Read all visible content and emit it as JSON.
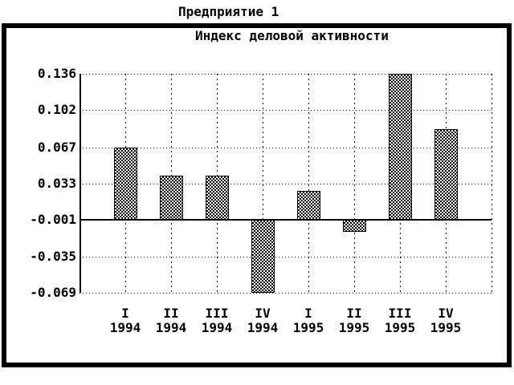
{
  "window": {
    "title": "Предприятие 1"
  },
  "chart_data": {
    "type": "bar",
    "title": "Индекс деловой активности",
    "categories": [
      {
        "quarter": "I",
        "year": "1994"
      },
      {
        "quarter": "II",
        "year": "1994"
      },
      {
        "quarter": "III",
        "year": "1994"
      },
      {
        "quarter": "IV",
        "year": "1994"
      },
      {
        "quarter": "I",
        "year": "1995"
      },
      {
        "quarter": "II",
        "year": "1995"
      },
      {
        "quarter": "III",
        "year": "1995"
      },
      {
        "quarter": "IV",
        "year": "1995"
      }
    ],
    "values": [
      0.067,
      0.041,
      0.041,
      -0.069,
      0.026,
      -0.012,
      0.136,
      0.084
    ],
    "yticks": [
      "0.136",
      "0.102",
      "0.067",
      "0.033",
      "-0.001",
      "-0.035",
      "-0.069"
    ],
    "baseline": -0.001,
    "ylim": [
      -0.069,
      0.136
    ],
    "grid": true,
    "legend": "none",
    "bar_fill": "black-checker-hatch",
    "colors": {
      "foreground": "#000000",
      "background": "#ffffff"
    }
  }
}
